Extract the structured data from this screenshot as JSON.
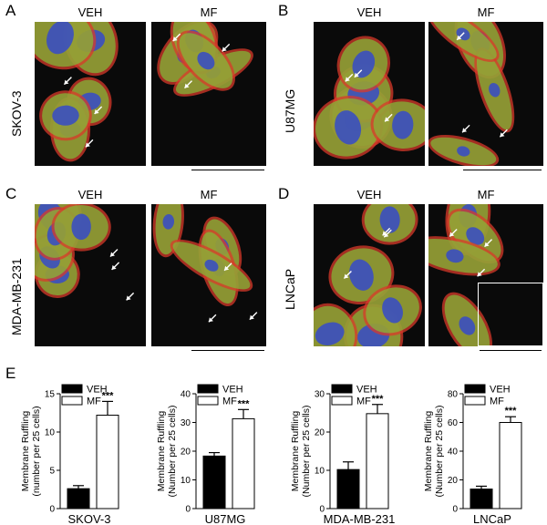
{
  "panels": [
    {
      "letter": "A",
      "cell_line": "SKOV-3",
      "left_label": "VEH",
      "right_label": "MF"
    },
    {
      "letter": "B",
      "cell_line": "U87MG",
      "left_label": "VEH",
      "right_label": "MF"
    },
    {
      "letter": "C",
      "cell_line": "MDA-MB-231",
      "left_label": "VEH",
      "right_label": "MF"
    },
    {
      "letter": "D",
      "cell_line": "LNCaP",
      "left_label": "VEH",
      "right_label": "MF"
    }
  ],
  "panel_e": {
    "letter": "E"
  },
  "colors": {
    "veh": "#000000",
    "mf": "#ffffff",
    "red_stain": "#d8392a",
    "green_stain": "#7fbf3a",
    "blue_stain": "#3a4fc0"
  },
  "chart_data": [
    {
      "type": "bar",
      "categories": [
        "VEH",
        "MF"
      ],
      "values": [
        2.6,
        12.2
      ],
      "errors": [
        0.4,
        1.8
      ],
      "xlabel": "SKOV-3",
      "ylabel": "Membrane Ruffling",
      "ylabel2": "(number per 25 cells)",
      "ylim": [
        0,
        15
      ],
      "yticks": [
        "0",
        "5",
        "10",
        "15"
      ],
      "significance": "***",
      "legend": [
        "VEH",
        "MF"
      ],
      "legend_position": "top-left"
    },
    {
      "type": "bar",
      "categories": [
        "VEH",
        "MF"
      ],
      "values": [
        18.3,
        31.3
      ],
      "errors": [
        1.2,
        3.2
      ],
      "xlabel": "U87MG",
      "ylabel": "Membrane Ruffling",
      "ylabel2": "(Number per 25 cells)",
      "ylim": [
        0,
        40
      ],
      "yticks": [
        "0",
        "10",
        "20",
        "30",
        "40"
      ],
      "significance": "***",
      "legend": [
        "VEH",
        "MF"
      ],
      "legend_position": "top-left"
    },
    {
      "type": "bar",
      "categories": [
        "VEH",
        "MF"
      ],
      "values": [
        10.2,
        24.8
      ],
      "errors": [
        2.0,
        2.4
      ],
      "xlabel": "MDA-MB-231",
      "ylabel": "Membrane Ruffling",
      "ylabel2": "(Number per 25 cells)",
      "ylim": [
        0,
        30
      ],
      "yticks": [
        "0",
        "10",
        "20",
        "30"
      ],
      "significance": "***",
      "legend": [
        "VEH",
        "MF"
      ],
      "legend_position": "top-left"
    },
    {
      "type": "bar",
      "categories": [
        "VEH",
        "MF"
      ],
      "values": [
        13.6,
        60.0
      ],
      "errors": [
        2.0,
        4.0
      ],
      "xlabel": "LNCaP",
      "ylabel": "Membrane Ruffling",
      "ylabel2": "(Number per 25 cells)",
      "ylim": [
        0,
        80
      ],
      "yticks": [
        "0",
        "20",
        "40",
        "60",
        "80"
      ],
      "significance": "***",
      "legend": [
        "VEH",
        "MF"
      ],
      "legend_position": "top-left"
    }
  ]
}
